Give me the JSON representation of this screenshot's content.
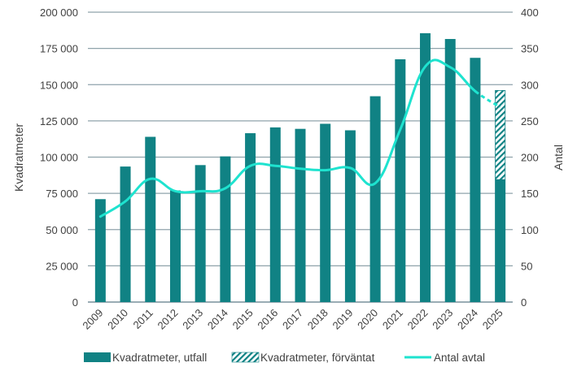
{
  "chart_data": {
    "type": "bar",
    "title": "",
    "categories": [
      "2009",
      "2010",
      "2011",
      "2012",
      "2013",
      "2014",
      "2015",
      "2016",
      "2017",
      "2018",
      "2019",
      "2020",
      "2021",
      "2022",
      "2023",
      "2024",
      "2025"
    ],
    "ylabel": "Kvadratmeter",
    "y2label": "Antal",
    "ylim": [
      0,
      200000
    ],
    "y2lim": [
      0,
      400
    ],
    "yticks": [
      "0",
      "25 000",
      "50 000",
      "75 000",
      "100 000",
      "125 000",
      "150 000",
      "175 000",
      "200 000"
    ],
    "y2ticks": [
      "0",
      "50",
      "100",
      "150",
      "200",
      "250",
      "300",
      "350",
      "400"
    ],
    "grid": true,
    "legend_position": "bottom",
    "series": [
      {
        "name": "Kvadratmeter, utfall",
        "type": "bar",
        "axis": "left",
        "color": "#108284",
        "values": [
          71000,
          93500,
          114000,
          77000,
          94500,
          100500,
          116500,
          120500,
          119500,
          123000,
          118500,
          142000,
          167500,
          185500,
          181500,
          168500,
          84500
        ]
      },
      {
        "name": "Kvadratmeter, förväntat",
        "type": "bar-stacked-hatched",
        "axis": "left",
        "color": "#108284",
        "values": [
          null,
          null,
          null,
          null,
          null,
          null,
          null,
          null,
          null,
          null,
          null,
          null,
          null,
          null,
          null,
          null,
          61500
        ]
      },
      {
        "name": "Antal avtal",
        "type": "line",
        "axis": "right",
        "color": "#1EE3CF",
        "values": [
          118,
          139,
          170,
          153,
          153,
          157,
          188,
          188,
          184,
          182,
          185,
          164,
          238,
          325,
          324,
          291,
          269
        ],
        "dashed_last_segment": true
      }
    ]
  }
}
